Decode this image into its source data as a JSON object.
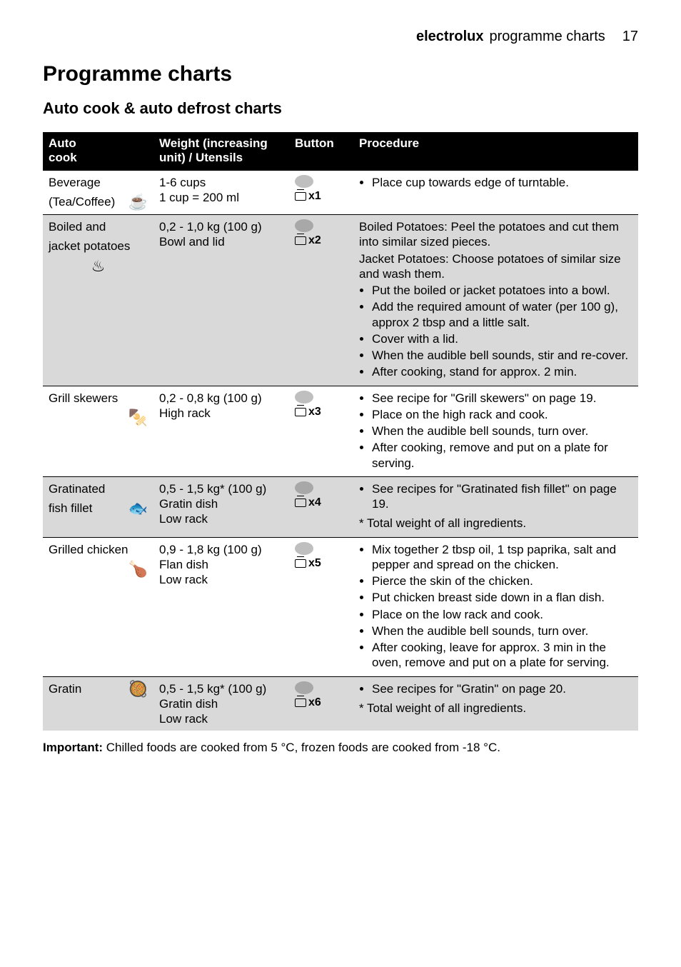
{
  "header": {
    "brand": "electrolux",
    "section": "programme charts",
    "page": "17"
  },
  "title": "Programme charts",
  "subtitle": "Auto cook & auto defrost charts",
  "columns": {
    "c1a": "Auto",
    "c1b": "cook",
    "c2a": "Weight (increasing",
    "c2b": "unit) / Utensils",
    "c3": "Button",
    "c4": "Procedure"
  },
  "rows": [
    {
      "name": "Beverage",
      "name2": "(Tea/Coffee)",
      "icon": "☕",
      "weight": [
        "1-6 cups",
        "1 cup = 200 ml"
      ],
      "btn": "x1",
      "proc_bullets": [
        "Place cup towards edge of turntable."
      ],
      "proc_pre": [],
      "proc_post": []
    },
    {
      "name": "Boiled and",
      "name2": "jacket potatoes",
      "icon": "♨",
      "weight": [
        "0,2 - 1,0 kg (100 g)",
        "Bowl and lid"
      ],
      "btn": "x2",
      "proc_pre": [
        "Boiled Potatoes: Peel the potatoes and cut them into similar sized pieces.",
        "Jacket Potatoes: Choose potatoes of similar size and wash them."
      ],
      "proc_bullets": [
        "Put the boiled or jacket potatoes into a bowl.",
        "Add the required amount of water (per 100 g), approx 2 tbsp and a little salt.",
        "Cover with a lid.",
        "When the audible bell sounds, stir and re-cover.",
        "After cooking, stand for approx. 2 min."
      ],
      "proc_post": []
    },
    {
      "name": "Grill skewers",
      "name2": "",
      "icon": "🍢",
      "weight": [
        "0,2 - 0,8 kg (100 g)",
        "High rack"
      ],
      "btn": "x3",
      "proc_pre": [],
      "proc_bullets": [
        "See recipe for \"Grill skewers\" on page 19.",
        "Place on the high rack and cook.",
        "When the audible bell sounds, turn over.",
        "After cooking, remove and put on a plate for serving."
      ],
      "proc_post": []
    },
    {
      "name": "Gratinated",
      "name2": "fish fillet",
      "icon": "🐟",
      "weight": [
        "0,5 - 1,5 kg* (100 g)",
        "Gratin dish",
        "Low rack"
      ],
      "btn": "x4",
      "proc_pre": [],
      "proc_bullets": [
        "See recipes for \"Gratinated fish fillet\" on page 19."
      ],
      "proc_post": [
        "* Total weight of all ingredients."
      ]
    },
    {
      "name": "Grilled chicken",
      "name2": "",
      "icon": "🍗",
      "weight": [
        "0,9 - 1,8 kg (100 g)",
        "Flan dish",
        "Low rack"
      ],
      "btn": "x5",
      "proc_pre": [],
      "proc_bullets": [
        "Mix together 2 tbsp oil, 1 tsp paprika, salt and pepper and spread on the chicken.",
        "Pierce the skin of the chicken.",
        "Put chicken breast side down in a flan dish.",
        "Place on the low rack and cook.",
        "When the audible bell sounds, turn over.",
        "After cooking, leave for approx. 3 min in the oven, remove and put on a plate for serving."
      ],
      "proc_post": []
    },
    {
      "name": "Gratin",
      "name2": "",
      "icon": "🥘",
      "weight": [
        "0,5 - 1,5 kg* (100 g)",
        "Gratin dish",
        "Low rack"
      ],
      "btn": "x6",
      "proc_pre": [],
      "proc_bullets": [
        "See recipes for \"Gratin\" on page 20."
      ],
      "proc_post": [
        "*  Total weight of all ingredients."
      ]
    }
  ],
  "footnote_label": "Important:",
  "footnote_text": " Chilled foods are cooked from 5 °C, frozen foods are cooked from -18 °C."
}
